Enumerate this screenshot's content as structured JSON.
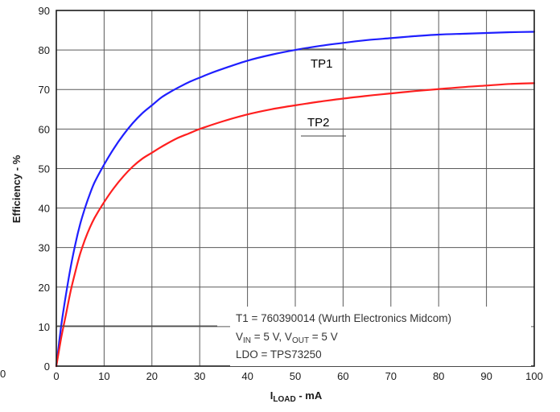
{
  "chart_data": {
    "type": "line",
    "xlabel": {
      "main": "I",
      "sub": "LOAD",
      "suffix": " - mA"
    },
    "ylabel": "Efficiency - %",
    "xlim": [
      0,
      100
    ],
    "ylim": [
      0,
      90
    ],
    "xticks": [
      0,
      10,
      20,
      30,
      40,
      50,
      60,
      70,
      80,
      90,
      100
    ],
    "yticks": [
      0,
      10,
      20,
      30,
      40,
      50,
      60,
      70,
      80,
      90
    ],
    "stray_tick": "0",
    "grid": true,
    "series": [
      {
        "name": "TP1",
        "color": "#1f1fff",
        "x": [
          0,
          1,
          2,
          3,
          4,
          5,
          6,
          7,
          8,
          10,
          12,
          14,
          16,
          18,
          20,
          22,
          24,
          26,
          28,
          30,
          32,
          35,
          40,
          45,
          50,
          55,
          60,
          65,
          70,
          75,
          80,
          85,
          90,
          95,
          100
        ],
        "y": [
          0,
          10,
          18,
          25,
          31,
          36,
          40,
          43.5,
          46.5,
          51,
          55,
          58.5,
          61.5,
          64,
          66,
          68,
          69.5,
          70.8,
          72,
          73,
          74,
          75.3,
          77.3,
          78.8,
          80,
          81,
          81.8,
          82.5,
          83,
          83.5,
          83.9,
          84.1,
          84.3,
          84.5,
          84.6
        ]
      },
      {
        "name": "TP2",
        "color": "#ff1f1f",
        "x": [
          0,
          1,
          2,
          3,
          4,
          5,
          6,
          7,
          8,
          10,
          12,
          14,
          16,
          18,
          20,
          22,
          25,
          28,
          30,
          35,
          40,
          45,
          50,
          55,
          60,
          65,
          70,
          75,
          80,
          85,
          90,
          95,
          100
        ],
        "y": [
          0,
          7,
          13,
          19,
          24,
          28.5,
          32,
          35,
          37.5,
          41.5,
          45,
          48,
          50.5,
          52.5,
          54,
          55.5,
          57.5,
          59,
          60,
          62,
          63.7,
          65,
          66,
          66.9,
          67.7,
          68.4,
          69,
          69.6,
          70.1,
          70.6,
          71,
          71.4,
          71.6
        ]
      }
    ],
    "annotations": {
      "line1": "T1 = 760390014 (Wurth Electronics Midcom)",
      "line2": {
        "v": "V",
        "in_sub": "IN",
        "mid": " = 5 V, V",
        "out_sub": "OUT",
        "end": " = 5 V"
      },
      "line3": "LDO = TPS73250"
    }
  }
}
